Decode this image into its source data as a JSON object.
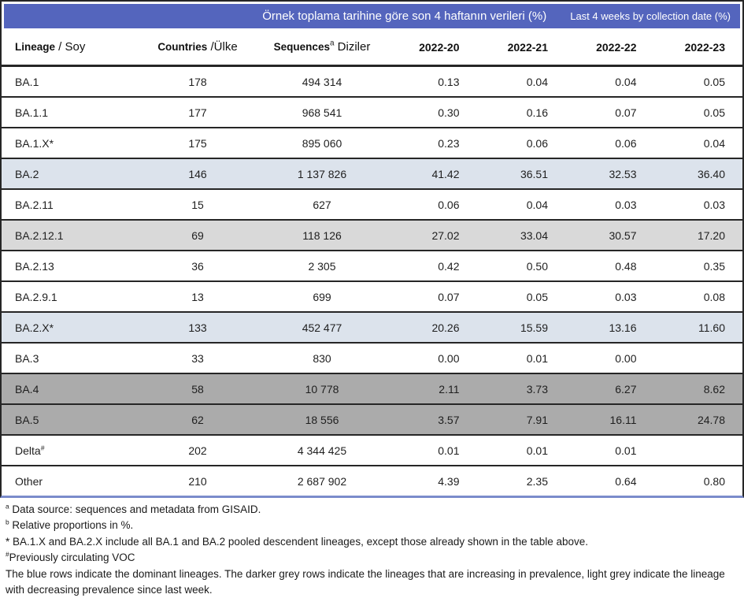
{
  "title": {
    "turkish": "Örnek toplama tarihine göre son 4 haftanın verileri (%)",
    "english": "Last 4 weeks by collection date (%)"
  },
  "columns": {
    "lineage": {
      "bold": "Lineage",
      "sup": "",
      "regular": " / Soy"
    },
    "countries": {
      "bold": "Countries",
      "sup": "",
      "regular": " /Ülke"
    },
    "sequences": {
      "bold": "Sequences",
      "sup": "a",
      "regular": " Diziler"
    },
    "weeks": [
      "2022-20",
      "2022-21",
      "2022-22",
      "2022-23"
    ]
  },
  "rows": [
    {
      "lineage": "BA.1",
      "sup": "",
      "countries": "178",
      "sequences": "494 314",
      "values": [
        "0.13",
        "0.04",
        "0.04",
        "0.05"
      ],
      "highlight": "none"
    },
    {
      "lineage": "BA.1.1",
      "sup": "",
      "countries": "177",
      "sequences": "968 541",
      "values": [
        "0.30",
        "0.16",
        "0.07",
        "0.05"
      ],
      "highlight": "none"
    },
    {
      "lineage": "BA.1.X*",
      "sup": "",
      "countries": "175",
      "sequences": "895 060",
      "values": [
        "0.23",
        "0.06",
        "0.06",
        "0.04"
      ],
      "highlight": "none"
    },
    {
      "lineage": "BA.2",
      "sup": "",
      "countries": "146",
      "sequences": "1 137 826",
      "values": [
        "41.42",
        "36.51",
        "32.53",
        "36.40"
      ],
      "highlight": "blue"
    },
    {
      "lineage": "BA.2.11",
      "sup": "",
      "countries": "15",
      "sequences": "627",
      "values": [
        "0.06",
        "0.04",
        "0.03",
        "0.03"
      ],
      "highlight": "none"
    },
    {
      "lineage": "BA.2.12.1",
      "sup": "",
      "countries": "69",
      "sequences": "118 126",
      "values": [
        "27.02",
        "33.04",
        "30.57",
        "17.20"
      ],
      "highlight": "lightgrey"
    },
    {
      "lineage": "BA.2.13",
      "sup": "",
      "countries": "36",
      "sequences": "2 305",
      "values": [
        "0.42",
        "0.50",
        "0.48",
        "0.35"
      ],
      "highlight": "none"
    },
    {
      "lineage": "BA.2.9.1",
      "sup": "",
      "countries": "13",
      "sequences": "699",
      "values": [
        "0.07",
        "0.05",
        "0.03",
        "0.08"
      ],
      "highlight": "none"
    },
    {
      "lineage": "BA.2.X*",
      "sup": "",
      "countries": "133",
      "sequences": "452 477",
      "values": [
        "20.26",
        "15.59",
        "13.16",
        "11.60"
      ],
      "highlight": "blue"
    },
    {
      "lineage": "BA.3",
      "sup": "",
      "countries": "33",
      "sequences": "830",
      "values": [
        "0.00",
        "0.01",
        "0.00",
        ""
      ],
      "highlight": "none"
    },
    {
      "lineage": "BA.4",
      "sup": "",
      "countries": "58",
      "sequences": "10 778",
      "values": [
        "2.11",
        "3.73",
        "6.27",
        "8.62"
      ],
      "highlight": "darkgrey"
    },
    {
      "lineage": "BA.5",
      "sup": "",
      "countries": "62",
      "sequences": "18 556",
      "values": [
        "3.57",
        "7.91",
        "16.11",
        "24.78"
      ],
      "highlight": "darkgrey"
    },
    {
      "lineage": "Delta",
      "sup": "#",
      "countries": "202",
      "sequences": "4 344 425",
      "values": [
        "0.01",
        "0.01",
        "0.01",
        ""
      ],
      "highlight": "none"
    },
    {
      "lineage": "Other",
      "sup": "",
      "countries": "210",
      "sequences": "2 687 902",
      "values": [
        "4.39",
        "2.35",
        "0.64",
        "0.80"
      ],
      "highlight": "none"
    }
  ],
  "footnotes": [
    {
      "sup": "a",
      "text": " Data source: sequences and metadata from GISAID."
    },
    {
      "sup": "b",
      "text": " Relative proportions in %."
    },
    {
      "sup": "",
      "text": "* BA.1.X and BA.2.X include all BA.1 and BA.2 pooled descendent lineages, except those already shown in the table above."
    },
    {
      "sup": "#",
      "text": "Previously circulating VOC"
    },
    {
      "sup": "",
      "text": "The blue rows indicate the dominant lineages. The darker grey rows indicate the lineages that are increasing in prevalence, light grey indicate the lineage with decreasing prevalence since last week."
    }
  ],
  "colors": {
    "header_band_blue": "#5465BD",
    "row_dominant_blue": "#DCE3EC",
    "row_decreasing_lightgrey": "#D9D9D9",
    "row_increasing_darkgrey": "#ABABAB",
    "border_black": "#262626",
    "bottom_border_blue": "#7B8CCB",
    "title_text": "#FFFFFF"
  }
}
